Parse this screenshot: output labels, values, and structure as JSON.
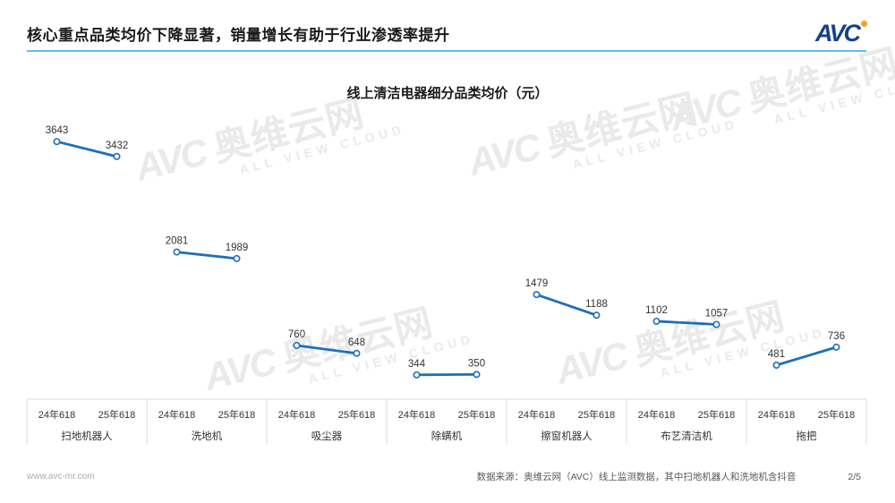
{
  "header": {
    "title": "核心重点品类均价下降显著，销量增长有助于行业渗透率提升",
    "logo_text": "AVC"
  },
  "chart_data": {
    "type": "line",
    "title": "线上清洁电器细分品类均价（元）",
    "group_labels": [
      "24年618",
      "25年618"
    ],
    "categories": [
      "扫地机器人",
      "洗地机",
      "吸尘器",
      "除螨机",
      "擦窗机器人",
      "布艺清洁机",
      "拖把"
    ],
    "series": [
      {
        "name": "扫地机器人",
        "values": [
          3643,
          3432
        ]
      },
      {
        "name": "洗地机",
        "values": [
          2081,
          1989
        ]
      },
      {
        "name": "吸尘器",
        "values": [
          760,
          648
        ]
      },
      {
        "name": "除螨机",
        "values": [
          344,
          350
        ]
      },
      {
        "name": "擦窗机器人",
        "values": [
          1479,
          1188
        ]
      },
      {
        "name": "布艺清洁机",
        "values": [
          1102,
          1057
        ]
      },
      {
        "name": "拖把",
        "values": [
          481,
          736
        ]
      }
    ],
    "ylim": [
      0,
      4000
    ],
    "grid": false,
    "legend": "none",
    "xlabel": "",
    "ylabel": ""
  },
  "watermark": {
    "brand": "AVC",
    "cn": "奥维云网",
    "en": "ALL VIEW CLOUD"
  },
  "footer": {
    "website": "www.avc-mr.com",
    "source": "数据来源：奥维云网（AVC）线上监测数据，其中扫地机器人和洗地机含抖音",
    "page": "2/5"
  },
  "colors": {
    "line_blue": "#1E6FB8",
    "marker_fill": "#FFFFFF",
    "value_text": "#333333",
    "axis_gray": "#DBDBDB",
    "axis_text": "#333333",
    "header_underline": "#58C3EA",
    "logo_blue": "#16408E",
    "logo_orange": "#F7A21B",
    "watermark_gray": "#EAEAEA"
  }
}
